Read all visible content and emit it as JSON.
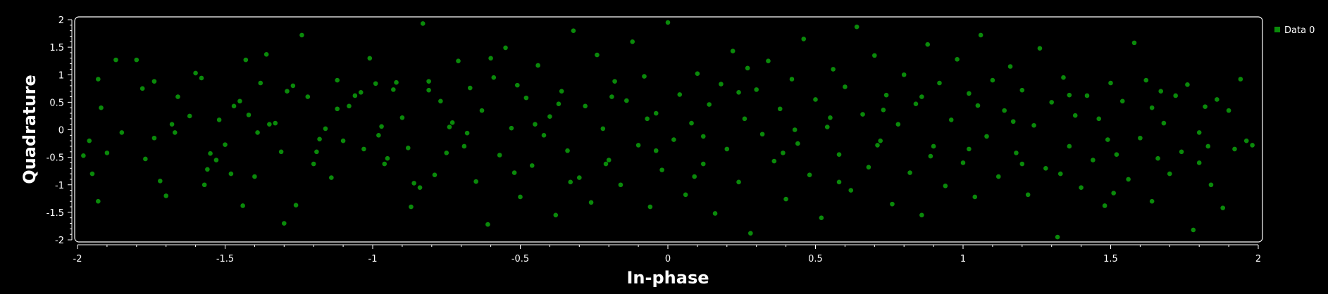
{
  "chart_data": {
    "type": "scatter",
    "xlabel": "In-phase",
    "ylabel": "Quadrature",
    "xlim": [
      -2,
      2
    ],
    "ylim": [
      -2,
      2
    ],
    "xticks": [
      -2,
      -1.5,
      -1,
      -0.5,
      0,
      0.5,
      1,
      1.5,
      2
    ],
    "yticks": [
      -2,
      -1.5,
      -1,
      -0.5,
      0,
      0.5,
      1,
      1.5,
      2
    ],
    "grid": false,
    "legend_position": "top-right",
    "series": [
      {
        "name": "Data 0",
        "color": "#0a8a0a",
        "points": [
          [
            -1.98,
            -0.47
          ],
          [
            -1.96,
            -0.2
          ],
          [
            -1.95,
            -0.8
          ],
          [
            -1.93,
            0.92
          ],
          [
            -1.93,
            -1.3
          ],
          [
            -1.92,
            0.4
          ],
          [
            -1.9,
            -0.42
          ],
          [
            -1.87,
            1.27
          ],
          [
            -1.8,
            1.27
          ],
          [
            -1.78,
            0.75
          ],
          [
            -1.77,
            -0.53
          ],
          [
            -1.74,
            0.88
          ],
          [
            -1.72,
            -0.93
          ],
          [
            -1.7,
            -1.2
          ],
          [
            -1.68,
            0.1
          ],
          [
            -1.67,
            -0.05
          ],
          [
            -1.66,
            0.6
          ],
          [
            -1.6,
            1.03
          ],
          [
            -1.58,
            0.94
          ],
          [
            -1.56,
            -0.72
          ],
          [
            -1.55,
            -0.43
          ],
          [
            -1.53,
            -0.55
          ],
          [
            -1.52,
            0.18
          ],
          [
            -1.5,
            -0.27
          ],
          [
            -1.48,
            -0.8
          ],
          [
            -1.47,
            0.43
          ],
          [
            -1.45,
            0.52
          ],
          [
            -1.43,
            1.27
          ],
          [
            -1.42,
            0.27
          ],
          [
            -1.4,
            -0.85
          ],
          [
            -1.38,
            0.85
          ],
          [
            -1.36,
            1.37
          ],
          [
            -1.35,
            0.1
          ],
          [
            -1.33,
            0.12
          ],
          [
            -1.31,
            -0.4
          ],
          [
            -1.29,
            0.7
          ],
          [
            -1.27,
            0.8
          ],
          [
            -1.26,
            -1.37
          ],
          [
            -1.24,
            1.72
          ],
          [
            -1.22,
            0.6
          ],
          [
            -1.2,
            -0.62
          ],
          [
            -1.18,
            -0.17
          ],
          [
            -1.16,
            0.02
          ],
          [
            -1.14,
            -0.87
          ],
          [
            -1.12,
            0.38
          ],
          [
            -1.1,
            -0.2
          ],
          [
            -1.08,
            0.43
          ],
          [
            -1.06,
            0.62
          ],
          [
            -1.04,
            0.68
          ],
          [
            -1.03,
            -0.35
          ],
          [
            -1.01,
            1.3
          ],
          [
            -0.99,
            0.84
          ],
          [
            -0.97,
            0.06
          ],
          [
            -0.95,
            -0.52
          ],
          [
            -0.93,
            0.73
          ],
          [
            -0.92,
            0.86
          ],
          [
            -0.9,
            0.22
          ],
          [
            -0.88,
            -0.33
          ],
          [
            -0.86,
            -0.97
          ],
          [
            -0.84,
            -1.05
          ],
          [
            -0.83,
            1.93
          ],
          [
            -0.81,
            0.88
          ],
          [
            -0.79,
            -0.82
          ],
          [
            -0.77,
            0.52
          ],
          [
            -0.75,
            -0.42
          ],
          [
            -0.73,
            0.13
          ],
          [
            -0.71,
            1.25
          ],
          [
            -0.69,
            -0.3
          ],
          [
            -0.67,
            0.76
          ],
          [
            -0.65,
            -0.94
          ],
          [
            -0.63,
            0.35
          ],
          [
            -0.61,
            -1.72
          ],
          [
            -0.59,
            0.95
          ],
          [
            -0.57,
            -0.46
          ],
          [
            -0.55,
            1.49
          ],
          [
            -0.53,
            0.03
          ],
          [
            -0.51,
            0.81
          ],
          [
            -0.5,
            -1.22
          ],
          [
            -0.48,
            0.58
          ],
          [
            -0.46,
            -0.65
          ],
          [
            -0.44,
            1.17
          ],
          [
            -0.42,
            -0.1
          ],
          [
            -0.4,
            0.24
          ],
          [
            -0.38,
            -1.55
          ],
          [
            -0.36,
            0.7
          ],
          [
            -0.34,
            -0.38
          ],
          [
            -0.32,
            1.8
          ],
          [
            -0.3,
            -0.87
          ],
          [
            -0.28,
            0.43
          ],
          [
            -0.26,
            -1.32
          ],
          [
            -0.24,
            1.36
          ],
          [
            -0.22,
            0.02
          ],
          [
            -0.2,
            -0.55
          ],
          [
            -0.18,
            0.88
          ],
          [
            -0.16,
            -1.0
          ],
          [
            -0.14,
            0.53
          ],
          [
            -0.12,
            1.6
          ],
          [
            -0.1,
            -0.28
          ],
          [
            -0.08,
            0.97
          ],
          [
            -0.06,
            -1.4
          ],
          [
            -0.04,
            0.3
          ],
          [
            -0.02,
            -0.73
          ],
          [
            0.0,
            1.95
          ],
          [
            0.02,
            -0.18
          ],
          [
            0.04,
            0.64
          ],
          [
            0.06,
            -1.18
          ],
          [
            0.08,
            0.12
          ],
          [
            0.1,
            1.02
          ],
          [
            0.12,
            -0.62
          ],
          [
            0.14,
            0.46
          ],
          [
            0.16,
            -1.52
          ],
          [
            0.18,
            0.83
          ],
          [
            0.2,
            -0.35
          ],
          [
            0.22,
            1.43
          ],
          [
            0.24,
            -0.95
          ],
          [
            0.26,
            0.2
          ],
          [
            0.28,
            -1.88
          ],
          [
            0.3,
            0.73
          ],
          [
            0.32,
            -0.08
          ],
          [
            0.34,
            1.25
          ],
          [
            0.36,
            -0.57
          ],
          [
            0.38,
            0.38
          ],
          [
            0.4,
            -1.26
          ],
          [
            0.42,
            0.92
          ],
          [
            0.44,
            -0.25
          ],
          [
            0.46,
            1.65
          ],
          [
            0.48,
            -0.82
          ],
          [
            0.5,
            0.55
          ],
          [
            0.52,
            -1.6
          ],
          [
            0.54,
            0.05
          ],
          [
            0.56,
            1.1
          ],
          [
            0.58,
            -0.45
          ],
          [
            0.6,
            0.78
          ],
          [
            0.62,
            -1.1
          ],
          [
            0.64,
            1.87
          ],
          [
            0.66,
            0.28
          ],
          [
            0.68,
            -0.68
          ],
          [
            0.7,
            1.35
          ],
          [
            0.72,
            -0.2
          ],
          [
            0.74,
            0.63
          ],
          [
            0.76,
            -1.35
          ],
          [
            0.78,
            0.1
          ],
          [
            0.8,
            1.0
          ],
          [
            0.82,
            -0.78
          ],
          [
            0.84,
            0.47
          ],
          [
            0.86,
            -1.55
          ],
          [
            0.88,
            1.55
          ],
          [
            0.9,
            -0.3
          ],
          [
            0.92,
            0.85
          ],
          [
            0.94,
            -1.02
          ],
          [
            0.96,
            0.18
          ],
          [
            0.98,
            1.28
          ],
          [
            1.0,
            -0.6
          ],
          [
            1.02,
            0.66
          ],
          [
            1.04,
            -1.22
          ],
          [
            1.06,
            1.72
          ],
          [
            1.08,
            -0.12
          ],
          [
            1.1,
            0.9
          ],
          [
            1.12,
            -0.85
          ],
          [
            1.14,
            0.35
          ],
          [
            1.16,
            1.15
          ],
          [
            1.18,
            -0.42
          ],
          [
            1.2,
            0.72
          ],
          [
            1.22,
            -1.18
          ],
          [
            1.24,
            0.08
          ],
          [
            1.26,
            1.48
          ],
          [
            1.28,
            -0.7
          ],
          [
            1.3,
            0.5
          ],
          [
            1.32,
            -1.95
          ],
          [
            1.34,
            0.95
          ],
          [
            1.36,
            -0.3
          ],
          [
            1.38,
            0.26
          ],
          [
            1.4,
            -1.05
          ],
          [
            1.42,
            0.62
          ],
          [
            1.44,
            -0.55
          ],
          [
            1.46,
            0.2
          ],
          [
            1.48,
            -1.38
          ],
          [
            1.5,
            0.85
          ],
          [
            1.52,
            -0.45
          ],
          [
            1.54,
            0.52
          ],
          [
            1.56,
            -0.9
          ],
          [
            1.58,
            1.58
          ],
          [
            1.6,
            -0.15
          ],
          [
            1.62,
            0.9
          ],
          [
            1.64,
            -1.3
          ],
          [
            1.66,
            -0.52
          ],
          [
            1.68,
            0.12
          ],
          [
            1.7,
            -0.8
          ],
          [
            1.72,
            0.62
          ],
          [
            1.74,
            -0.4
          ],
          [
            1.76,
            0.82
          ],
          [
            1.78,
            -1.82
          ],
          [
            1.8,
            -0.05
          ],
          [
            1.82,
            0.42
          ],
          [
            1.84,
            -1.0
          ],
          [
            1.86,
            0.55
          ],
          [
            1.88,
            -1.42
          ],
          [
            1.9,
            0.35
          ],
          [
            1.92,
            -0.35
          ],
          [
            1.94,
            0.92
          ],
          [
            1.96,
            -0.2
          ],
          [
            1.98,
            -0.28
          ],
          [
            -1.85,
            -0.05
          ],
          [
            -1.62,
            0.25
          ],
          [
            -1.44,
            -1.38
          ],
          [
            -1.3,
            -1.7
          ],
          [
            -1.12,
            0.9
          ],
          [
            -0.96,
            -0.62
          ],
          [
            -0.81,
            0.72
          ],
          [
            -0.68,
            -0.06
          ],
          [
            -0.52,
            -0.78
          ],
          [
            -0.37,
            0.47
          ],
          [
            -0.21,
            -0.62
          ],
          [
            -0.07,
            0.2
          ],
          [
            0.09,
            -0.85
          ],
          [
            0.24,
            0.68
          ],
          [
            0.39,
            -0.42
          ],
          [
            0.55,
            0.22
          ],
          [
            0.71,
            -0.28
          ],
          [
            0.86,
            0.6
          ],
          [
            1.02,
            -0.35
          ],
          [
            1.17,
            0.15
          ],
          [
            1.33,
            -0.8
          ],
          [
            1.49,
            -0.18
          ],
          [
            1.64,
            0.4
          ],
          [
            1.8,
            -0.6
          ],
          [
            -1.74,
            -0.15
          ],
          [
            -1.57,
            -1.0
          ],
          [
            -1.39,
            -0.05
          ],
          [
            -1.19,
            -0.4
          ],
          [
            -0.98,
            -0.1
          ],
          [
            -0.87,
            -1.4
          ],
          [
            -0.74,
            0.05
          ],
          [
            -0.6,
            1.3
          ],
          [
            -0.45,
            0.1
          ],
          [
            -0.33,
            -0.95
          ],
          [
            -0.19,
            0.6
          ],
          [
            -0.04,
            -0.38
          ],
          [
            0.12,
            -0.12
          ],
          [
            0.27,
            1.12
          ],
          [
            0.43,
            0.0
          ],
          [
            0.58,
            -0.95
          ],
          [
            0.73,
            0.36
          ],
          [
            0.89,
            -0.48
          ],
          [
            1.05,
            0.44
          ],
          [
            1.2,
            -0.62
          ],
          [
            1.36,
            0.63
          ],
          [
            1.51,
            -1.15
          ],
          [
            1.67,
            0.7
          ],
          [
            1.83,
            -0.3
          ]
        ]
      }
    ]
  }
}
